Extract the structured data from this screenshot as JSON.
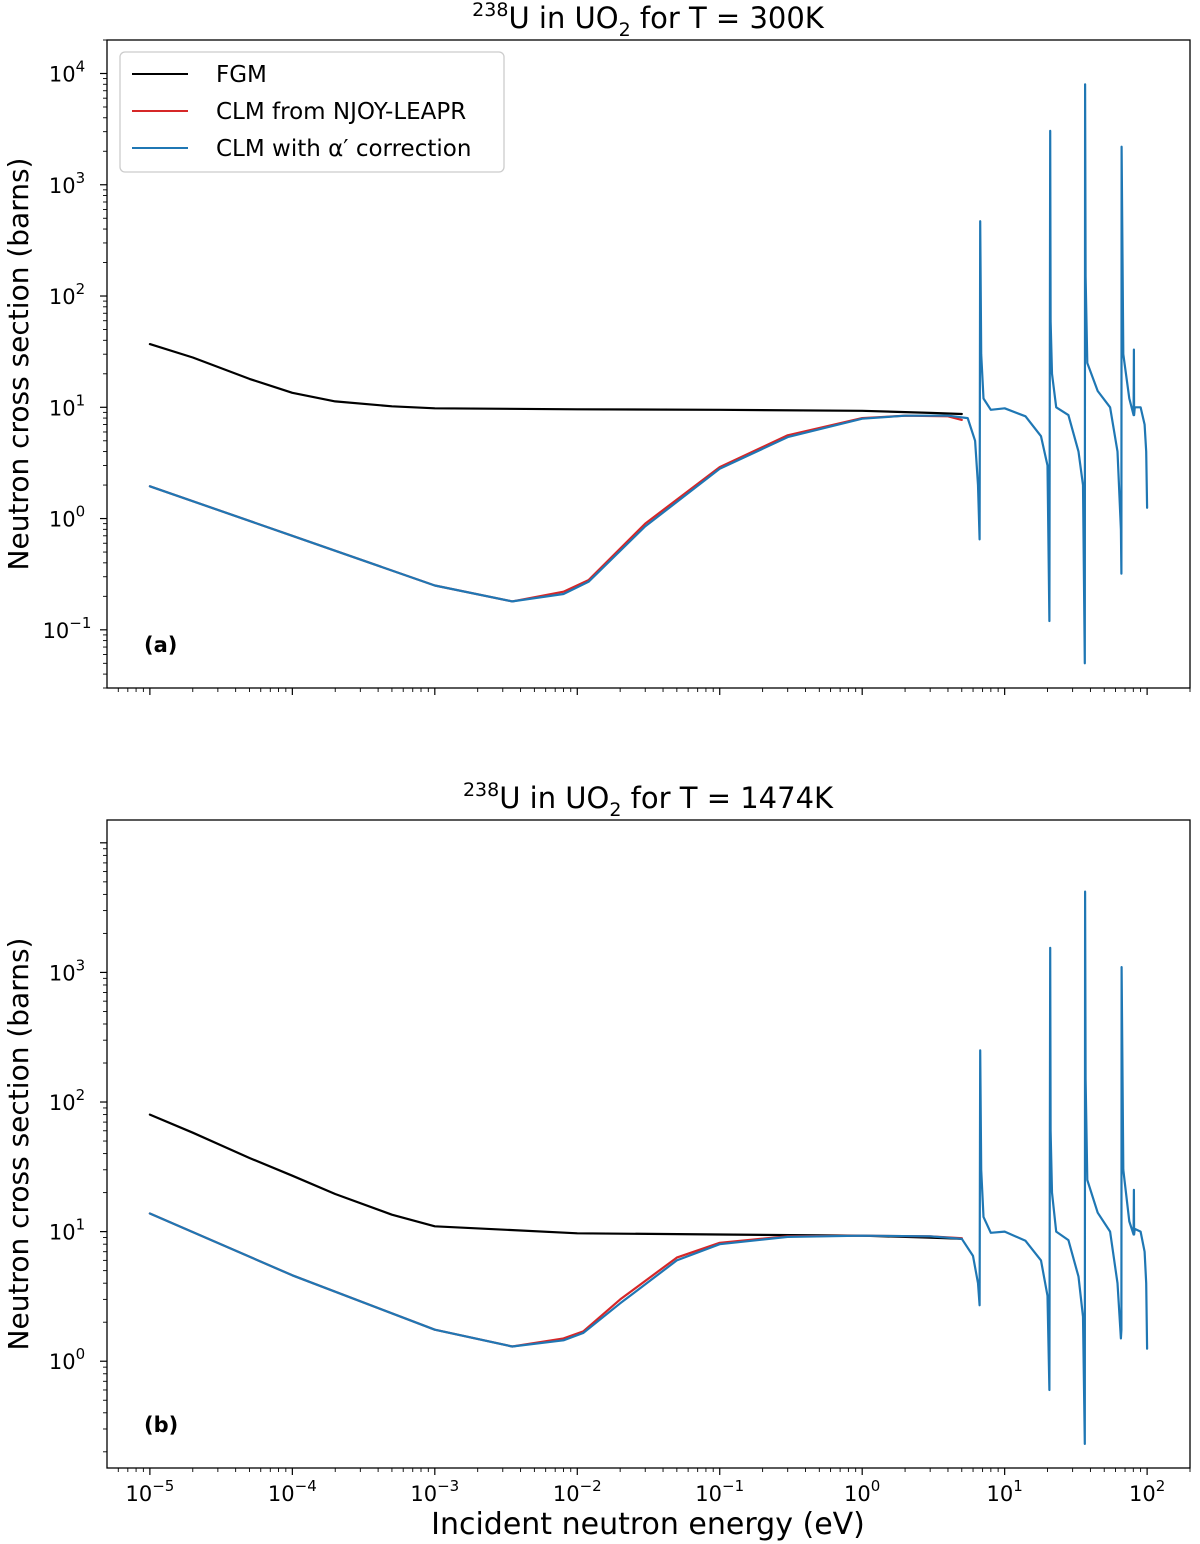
{
  "figure": {
    "xlabel": "Incident neutron energy (eV)",
    "legend": [
      "FGM",
      "CLM from NJOY-LEAPR",
      "CLM with α′ correction"
    ],
    "x_ticks": [
      "10−5",
      "10−4",
      "10−3",
      "10−2",
      "10−1",
      "100",
      "101",
      "102"
    ]
  },
  "chart_data": [
    {
      "type": "line",
      "panel_label": "(a)",
      "title": {
        "sup": "238",
        "pre": "U in UO",
        "sub": "2",
        "post": " for T = 300K"
      },
      "ylabel": "Neutron cross section (barns)",
      "xscale": "log",
      "yscale": "log",
      "xlim": [
        5e-06,
        200
      ],
      "ylim": [
        0.03,
        20000
      ],
      "y_ticks": [
        "10−1",
        "100",
        "101",
        "102",
        "103",
        "104"
      ],
      "legend_position": "top-left",
      "series": [
        {
          "name": "FGM",
          "color": "#000000",
          "x": [
            1e-05,
            2e-05,
            5e-05,
            0.0001,
            0.0002,
            0.0005,
            0.001,
            0.01,
            0.1,
            1,
            3,
            5
          ],
          "y": [
            37,
            28,
            18,
            13.5,
            11.3,
            10.2,
            9.8,
            9.6,
            9.5,
            9.3,
            8.9,
            8.7
          ]
        },
        {
          "name": "CLM from NJOY-LEAPR",
          "color": "#d62728",
          "x": [
            1e-05,
            0.0001,
            0.001,
            0.0035,
            0.008,
            0.012,
            0.03,
            0.1,
            0.3,
            1,
            2,
            4,
            5
          ],
          "y": [
            1.95,
            0.7,
            0.25,
            0.18,
            0.22,
            0.28,
            0.9,
            2.9,
            5.6,
            8.0,
            8.4,
            8.3,
            7.7
          ]
        },
        {
          "name": "CLM with α′ correction",
          "color": "#1f77b4",
          "x": [
            1e-05,
            0.0001,
            0.001,
            0.0035,
            0.008,
            0.012,
            0.03,
            0.1,
            0.3,
            1,
            2,
            4,
            5.5,
            6.2,
            6.5,
            6.67,
            6.74,
            6.85,
            7.1,
            8,
            10,
            14,
            18,
            20,
            20.6,
            20.87,
            21.0,
            21.5,
            23,
            28,
            33,
            35.5,
            36.55,
            36.68,
            37.0,
            38,
            45,
            55,
            62,
            65.5,
            66.03,
            66.2,
            68,
            75,
            80.4,
            80.75,
            81.0,
            82,
            90,
            96,
            98.5,
            100
          ],
          "y": [
            1.95,
            0.7,
            0.25,
            0.18,
            0.21,
            0.27,
            0.85,
            2.8,
            5.4,
            7.9,
            8.4,
            8.4,
            8.0,
            5.0,
            2.0,
            0.65,
            470,
            30,
            12,
            9.5,
            9.8,
            8.3,
            5.5,
            3.0,
            0.12,
            3050,
            60,
            20,
            10,
            8.5,
            4,
            2.0,
            0.05,
            8000,
            150,
            25,
            14,
            10,
            4,
            0.8,
            0.32,
            2200,
            30,
            12,
            8.5,
            33,
            8.5,
            10,
            10,
            7,
            4,
            1.25
          ]
        }
      ]
    },
    {
      "type": "line",
      "panel_label": "(b)",
      "title": {
        "sup": "238",
        "pre": "U in UO",
        "sub": "2",
        "post": " for T = 1474K"
      },
      "ylabel": "Neutron cross section (barns)",
      "xscale": "log",
      "yscale": "log",
      "xlim": [
        5e-06,
        200
      ],
      "ylim": [
        0.15,
        15000
      ],
      "y_ticks": [
        "100",
        "101",
        "102",
        "103"
      ],
      "series": [
        {
          "name": "FGM",
          "color": "#000000",
          "x": [
            1e-05,
            2e-05,
            5e-05,
            0.0001,
            0.0002,
            0.0005,
            0.001,
            0.01,
            0.1,
            1,
            3,
            5
          ],
          "y": [
            80,
            58,
            37,
            27,
            19.5,
            13.5,
            11.0,
            9.7,
            9.5,
            9.3,
            9.0,
            8.8
          ]
        },
        {
          "name": "CLM from NJOY-LEAPR",
          "color": "#d62728",
          "x": [
            1e-05,
            0.0001,
            0.001,
            0.0035,
            0.008,
            0.011,
            0.02,
            0.05,
            0.1,
            0.3,
            1,
            3,
            5
          ],
          "y": [
            13.8,
            4.6,
            1.75,
            1.3,
            1.5,
            1.7,
            3.0,
            6.3,
            8.2,
            9.2,
            9.3,
            9.2,
            8.9
          ]
        },
        {
          "name": "CLM with α′ correction",
          "color": "#1f77b4",
          "x": [
            1e-05,
            0.0001,
            0.001,
            0.0035,
            0.008,
            0.011,
            0.02,
            0.05,
            0.1,
            0.3,
            1,
            3,
            5,
            6.0,
            6.5,
            6.67,
            6.74,
            6.85,
            7.1,
            8,
            10,
            14,
            18,
            20,
            20.6,
            20.87,
            21.0,
            21.5,
            23,
            28,
            33,
            35.5,
            36.55,
            36.68,
            37.0,
            38,
            45,
            55,
            62,
            65.5,
            66.03,
            66.2,
            68,
            75,
            80.4,
            80.75,
            81.0,
            82,
            90,
            96,
            98.5,
            100
          ],
          "y": [
            13.8,
            4.6,
            1.75,
            1.3,
            1.45,
            1.65,
            2.8,
            6.0,
            8.0,
            9.1,
            9.3,
            9.2,
            8.8,
            6.5,
            4.0,
            2.7,
            250,
            30,
            13,
            9.8,
            10,
            8.5,
            6.0,
            3.2,
            0.6,
            1550,
            60,
            20,
            10,
            8.6,
            4.5,
            2.2,
            0.23,
            4200,
            150,
            25,
            14,
            10,
            4,
            1.5,
            1.75,
            1100,
            30,
            12,
            9.5,
            21,
            9.5,
            10.5,
            10,
            7,
            4,
            1.25
          ]
        }
      ]
    }
  ]
}
